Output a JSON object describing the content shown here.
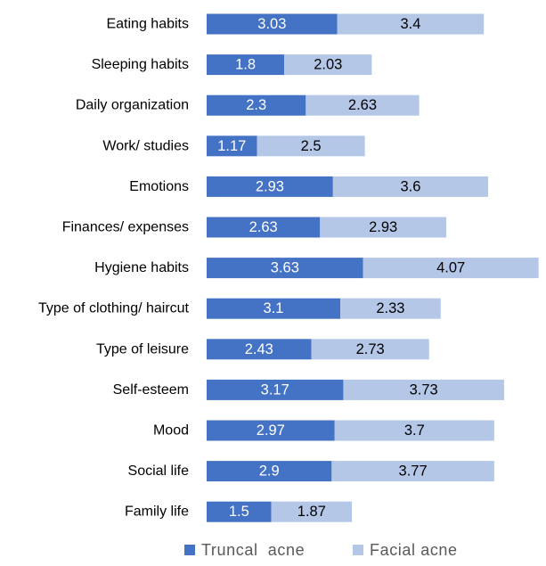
{
  "chart_data": {
    "type": "bar",
    "orientation": "horizontal",
    "stacked": true,
    "title": "",
    "xlabel": "",
    "ylabel": "",
    "grid": false,
    "legend_position": "bottom",
    "categories": [
      "Eating habits",
      "Sleeping habits",
      "Daily organization",
      "Work/ studies",
      "Emotions",
      "Finances/ expenses",
      "Hygiene habits",
      "Type of clothing/ haircut",
      "Type of leisure",
      "Self-esteem",
      "Mood",
      "Social life",
      "Family life"
    ],
    "series": [
      {
        "name": "Truncal  acne",
        "color": "#4472C4",
        "label_color": "#FFFFFF",
        "values": [
          3.03,
          1.8,
          2.3,
          1.17,
          2.93,
          2.63,
          3.63,
          3.1,
          2.43,
          3.17,
          2.97,
          2.9,
          1.5
        ],
        "labels": [
          "3.03",
          "1.8",
          "2.3",
          "1.17",
          "2.93",
          "2.63",
          "3.63",
          "3.1",
          "2.43",
          "3.17",
          "2.97",
          "2.9",
          "1.5"
        ]
      },
      {
        "name": "Facial acne",
        "color": "#B4C7E7",
        "label_color": "#000000",
        "values": [
          3.4,
          2.03,
          2.63,
          2.5,
          3.6,
          2.93,
          4.07,
          2.33,
          2.73,
          3.73,
          3.7,
          3.77,
          1.87
        ],
        "labels": [
          "3.4",
          "2.03",
          "2.63",
          "2.5",
          "3.6",
          "2.93",
          "4.07",
          "2.33",
          "2.73",
          "3.73",
          "3.7",
          "3.77",
          "1.87"
        ]
      }
    ],
    "xlim": [
      0,
      7.7
    ]
  }
}
